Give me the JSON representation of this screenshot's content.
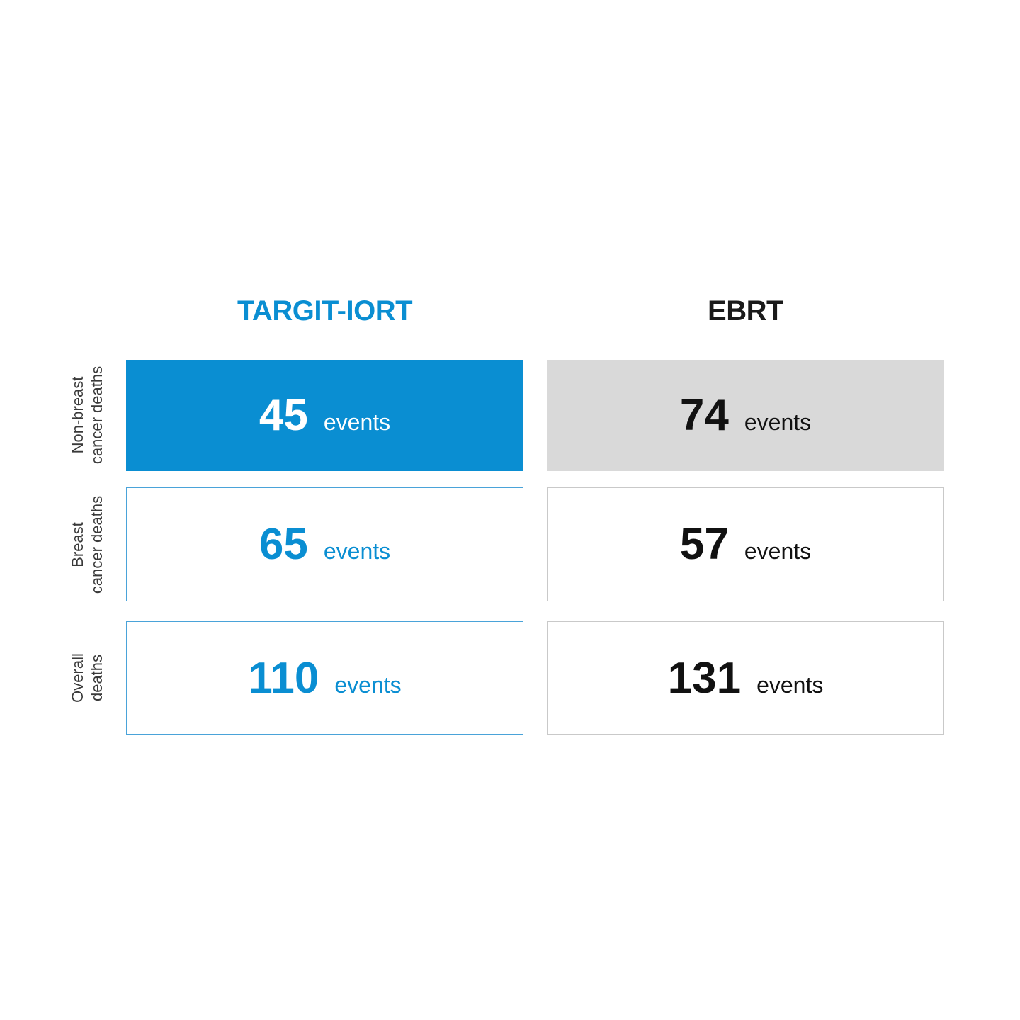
{
  "figure": {
    "description": "Comparison of death events between TARGIT-IORT and EBRT arms"
  },
  "columns": {
    "targit": {
      "label": "TARGIT-IORT"
    },
    "ebrt": {
      "label": "EBRT"
    }
  },
  "rows": [
    {
      "label_line1": "Non-breast",
      "label_line2": "cancer deaths",
      "targit_value": "45",
      "targit_unit": "events",
      "ebrt_value": "74",
      "ebrt_unit": "events"
    },
    {
      "label_line1": "Breast",
      "label_line2": "cancer deaths",
      "targit_value": "65",
      "targit_unit": "events",
      "ebrt_value": "57",
      "ebrt_unit": "events"
    },
    {
      "label_line1": "Overall",
      "label_line2": "deaths",
      "targit_value": "110",
      "targit_unit": "events",
      "ebrt_value": "131",
      "ebrt_unit": "events"
    }
  ],
  "colors": {
    "accent_blue": "#0a8ed2",
    "blue_box_border": "#4aa3d9",
    "gray_fill": "#d9d9d9",
    "gray_box_border": "#c9c9c9",
    "text_black": "#111111",
    "label_gray": "#3a3a3a",
    "background": "#ffffff"
  },
  "chart_data": {
    "type": "table",
    "title": "",
    "categories": [
      "Non-breast cancer deaths",
      "Breast cancer deaths",
      "Overall deaths"
    ],
    "series": [
      {
        "name": "TARGIT-IORT",
        "values": [
          45,
          65,
          110
        ]
      },
      {
        "name": "EBRT",
        "values": [
          74,
          57,
          131
        ]
      }
    ],
    "unit": "events",
    "layout": {
      "highlighted_row": "Non-breast cancer deaths",
      "highlight_style": "filled boxes (blue for TARGIT-IORT, gray for EBRT); other rows outlined boxes",
      "row_labels_rotated": true,
      "legend_position": "column headers on top"
    }
  }
}
